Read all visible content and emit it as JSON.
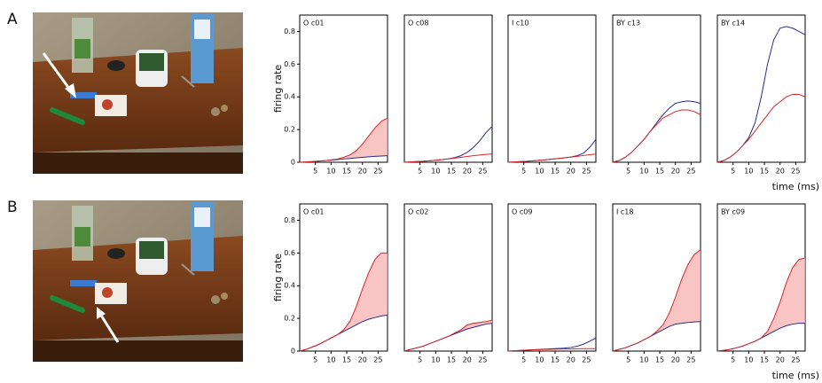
{
  "panel_labels": [
    "A",
    "B"
  ],
  "chart_data": [
    {
      "type": "line",
      "title": "O c01",
      "ylabel": "firing rate",
      "shade": true,
      "x": [
        0,
        2,
        4,
        6,
        8,
        10,
        12,
        14,
        16,
        18,
        20,
        22,
        24,
        26,
        28
      ],
      "xlim": [
        0,
        28
      ],
      "ylim": [
        0,
        0.9
      ],
      "xticks": [
        5,
        10,
        15,
        20,
        25
      ],
      "yticks": [
        0,
        0.2,
        0.4,
        0.6,
        0.8
      ],
      "series": [
        {
          "color": "#2b2b8c",
          "values": [
            0,
            0.002,
            0.004,
            0.007,
            0.01,
            0.013,
            0.016,
            0.02,
            0.023,
            0.027,
            0.03,
            0.033,
            0.036,
            0.038,
            0.04
          ]
        },
        {
          "color": "#d62728",
          "values": [
            0,
            0.002,
            0.004,
            0.007,
            0.01,
            0.014,
            0.02,
            0.03,
            0.045,
            0.07,
            0.11,
            0.16,
            0.21,
            0.25,
            0.27
          ]
        }
      ]
    },
    {
      "type": "line",
      "title": "O c08",
      "shade": false,
      "x": [
        0,
        2,
        4,
        6,
        8,
        10,
        12,
        14,
        16,
        18,
        20,
        22,
        24,
        26,
        28
      ],
      "xlim": [
        0,
        28
      ],
      "ylim": [
        0,
        0.9
      ],
      "xticks": [
        5,
        10,
        15,
        20,
        25
      ],
      "series": [
        {
          "color": "#2b2b8c",
          "values": [
            0,
            0.002,
            0.004,
            0.006,
            0.009,
            0.012,
            0.016,
            0.021,
            0.028,
            0.04,
            0.06,
            0.09,
            0.13,
            0.18,
            0.22
          ]
        },
        {
          "color": "#d62728",
          "values": [
            0,
            0.002,
            0.004,
            0.006,
            0.009,
            0.012,
            0.016,
            0.02,
            0.025,
            0.03,
            0.035,
            0.04,
            0.044,
            0.048,
            0.05
          ]
        }
      ]
    },
    {
      "type": "line",
      "title": "I c10",
      "shade": false,
      "x": [
        0,
        2,
        4,
        6,
        8,
        10,
        12,
        14,
        16,
        18,
        20,
        22,
        24,
        26,
        28
      ],
      "xlim": [
        0,
        28
      ],
      "ylim": [
        0,
        0.9
      ],
      "xticks": [
        5,
        10,
        15,
        20,
        25
      ],
      "series": [
        {
          "color": "#2b2b8c",
          "values": [
            0,
            0.002,
            0.004,
            0.006,
            0.009,
            0.012,
            0.015,
            0.019,
            0.023,
            0.027,
            0.032,
            0.04,
            0.055,
            0.09,
            0.14
          ]
        },
        {
          "color": "#d62728",
          "values": [
            0,
            0.002,
            0.004,
            0.006,
            0.009,
            0.012,
            0.015,
            0.019,
            0.023,
            0.027,
            0.031,
            0.036,
            0.041,
            0.046,
            0.05
          ]
        }
      ]
    },
    {
      "type": "line",
      "title": "BY c13",
      "shade": false,
      "x": [
        0,
        2,
        4,
        6,
        8,
        10,
        12,
        14,
        16,
        18,
        20,
        22,
        24,
        26,
        28
      ],
      "xlim": [
        0,
        28
      ],
      "ylim": [
        0,
        0.9
      ],
      "xticks": [
        5,
        10,
        15,
        20,
        25
      ],
      "series": [
        {
          "color": "#2b2b8c",
          "values": [
            0,
            0.01,
            0.03,
            0.06,
            0.1,
            0.14,
            0.19,
            0.24,
            0.29,
            0.33,
            0.36,
            0.37,
            0.375,
            0.37,
            0.36
          ]
        },
        {
          "color": "#d62728",
          "values": [
            0,
            0.01,
            0.03,
            0.06,
            0.1,
            0.14,
            0.19,
            0.23,
            0.27,
            0.29,
            0.31,
            0.32,
            0.32,
            0.31,
            0.29
          ]
        }
      ]
    },
    {
      "type": "line",
      "title": "BY c14",
      "xlabel": "time (ms)",
      "shade": false,
      "x": [
        0,
        2,
        4,
        6,
        8,
        10,
        12,
        14,
        16,
        18,
        20,
        22,
        24,
        26,
        28
      ],
      "xlim": [
        0,
        28
      ],
      "ylim": [
        0,
        0.9
      ],
      "xticks": [
        5,
        10,
        15,
        20,
        25
      ],
      "series": [
        {
          "color": "#2b2b8c",
          "values": [
            0,
            0.01,
            0.03,
            0.06,
            0.1,
            0.15,
            0.24,
            0.4,
            0.6,
            0.75,
            0.82,
            0.83,
            0.82,
            0.8,
            0.78
          ]
        },
        {
          "color": "#d62728",
          "values": [
            0,
            0.01,
            0.03,
            0.06,
            0.1,
            0.14,
            0.19,
            0.24,
            0.29,
            0.34,
            0.37,
            0.4,
            0.415,
            0.415,
            0.4
          ]
        }
      ]
    },
    {
      "type": "line",
      "title": "O c01",
      "ylabel": "firing rate",
      "shade": true,
      "x": [
        0,
        2,
        4,
        6,
        8,
        10,
        12,
        14,
        16,
        18,
        20,
        22,
        24,
        26,
        28
      ],
      "xlim": [
        0,
        28
      ],
      "ylim": [
        0,
        0.9
      ],
      "xticks": [
        5,
        10,
        15,
        20,
        25
      ],
      "yticks": [
        0,
        0.2,
        0.4,
        0.6,
        0.8
      ],
      "series": [
        {
          "color": "#2b2b8c",
          "values": [
            0,
            0.01,
            0.025,
            0.04,
            0.06,
            0.08,
            0.1,
            0.12,
            0.14,
            0.16,
            0.18,
            0.195,
            0.205,
            0.215,
            0.22
          ]
        },
        {
          "color": "#d62728",
          "values": [
            0,
            0.01,
            0.025,
            0.04,
            0.06,
            0.08,
            0.1,
            0.13,
            0.18,
            0.27,
            0.38,
            0.48,
            0.56,
            0.6,
            0.6
          ]
        }
      ]
    },
    {
      "type": "line",
      "title": "O c02",
      "shade": true,
      "x": [
        0,
        2,
        4,
        6,
        8,
        10,
        12,
        14,
        16,
        18,
        20,
        22,
        24,
        26,
        28
      ],
      "xlim": [
        0,
        28
      ],
      "ylim": [
        0,
        0.9
      ],
      "xticks": [
        5,
        10,
        15,
        20,
        25
      ],
      "series": [
        {
          "color": "#2b2b8c",
          "values": [
            0,
            0.01,
            0.02,
            0.03,
            0.045,
            0.06,
            0.075,
            0.09,
            0.105,
            0.12,
            0.135,
            0.145,
            0.155,
            0.165,
            0.17
          ]
        },
        {
          "color": "#d62728",
          "values": [
            0,
            0.01,
            0.02,
            0.03,
            0.045,
            0.06,
            0.075,
            0.09,
            0.11,
            0.13,
            0.16,
            0.17,
            0.175,
            0.18,
            0.19
          ]
        }
      ]
    },
    {
      "type": "line",
      "title": "O c09",
      "shade": false,
      "x": [
        0,
        2,
        4,
        6,
        8,
        10,
        12,
        14,
        16,
        18,
        20,
        22,
        24,
        26,
        28
      ],
      "xlim": [
        0,
        28
      ],
      "ylim": [
        0,
        0.9
      ],
      "xticks": [
        5,
        10,
        15,
        20,
        25
      ],
      "series": [
        {
          "color": "#2b2b8c",
          "values": [
            0,
            0.002,
            0.004,
            0.006,
            0.008,
            0.01,
            0.012,
            0.014,
            0.016,
            0.018,
            0.022,
            0.03,
            0.042,
            0.06,
            0.08
          ]
        },
        {
          "color": "#d62728",
          "values": [
            0,
            0.002,
            0.004,
            0.006,
            0.008,
            0.009,
            0.01,
            0.011,
            0.012,
            0.013,
            0.013,
            0.014,
            0.015,
            0.015,
            0.015
          ]
        }
      ]
    },
    {
      "type": "line",
      "title": "I c18",
      "shade": true,
      "x": [
        0,
        2,
        4,
        6,
        8,
        10,
        12,
        14,
        16,
        18,
        20,
        22,
        24,
        26,
        28
      ],
      "xlim": [
        0,
        28
      ],
      "ylim": [
        0,
        0.9
      ],
      "xticks": [
        5,
        10,
        15,
        20,
        25
      ],
      "series": [
        {
          "color": "#2b2b8c",
          "values": [
            0,
            0.01,
            0.02,
            0.035,
            0.05,
            0.07,
            0.09,
            0.11,
            0.13,
            0.15,
            0.165,
            0.17,
            0.175,
            0.178,
            0.18
          ]
        },
        {
          "color": "#d62728",
          "values": [
            0,
            0.01,
            0.02,
            0.035,
            0.05,
            0.07,
            0.09,
            0.12,
            0.16,
            0.23,
            0.33,
            0.44,
            0.53,
            0.59,
            0.62
          ]
        }
      ]
    },
    {
      "type": "line",
      "title": "BY c09",
      "xlabel": "time (ms)",
      "shade": true,
      "x": [
        0,
        2,
        4,
        6,
        8,
        10,
        12,
        14,
        16,
        18,
        20,
        22,
        24,
        26,
        28
      ],
      "xlim": [
        0,
        28
      ],
      "ylim": [
        0,
        0.9
      ],
      "xticks": [
        5,
        10,
        15,
        20,
        25
      ],
      "series": [
        {
          "color": "#2b2b8c",
          "values": [
            0,
            0.005,
            0.01,
            0.02,
            0.03,
            0.045,
            0.06,
            0.08,
            0.1,
            0.12,
            0.14,
            0.155,
            0.165,
            0.17,
            0.17
          ]
        },
        {
          "color": "#d62728",
          "values": [
            0,
            0.005,
            0.01,
            0.02,
            0.03,
            0.045,
            0.06,
            0.08,
            0.12,
            0.2,
            0.3,
            0.42,
            0.51,
            0.56,
            0.57
          ]
        }
      ]
    }
  ]
}
